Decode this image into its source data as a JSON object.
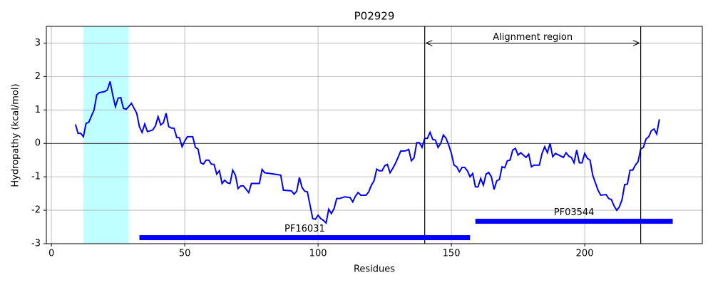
{
  "chart_data": {
    "type": "line",
    "title": "P02929",
    "xlabel": "Residues",
    "ylabel": "Hydropathy (kcal/mol)",
    "x": [
      9,
      10,
      11,
      12,
      13,
      14,
      16,
      17,
      18,
      20,
      21,
      22,
      23,
      24,
      25,
      26,
      27,
      28,
      29,
      30,
      31,
      32,
      33,
      34,
      35,
      36,
      38,
      39,
      40,
      41,
      42,
      43,
      44,
      45,
      46,
      47,
      48,
      49,
      50,
      51,
      53,
      54,
      55,
      56,
      57,
      58,
      59,
      60,
      61,
      62,
      63,
      64,
      65,
      66,
      67,
      68,
      69,
      70,
      71,
      72,
      74,
      75,
      78,
      79,
      80,
      82,
      86,
      87,
      90,
      91,
      92,
      93,
      94,
      95,
      96,
      97,
      98,
      99,
      100,
      101,
      102,
      103,
      104,
      105,
      106,
      107,
      108,
      110,
      112,
      113,
      114,
      115,
      116,
      118,
      119,
      120,
      121,
      122,
      123,
      124,
      125,
      126,
      127,
      128,
      129,
      130,
      131,
      132,
      133,
      134,
      135,
      136,
      137,
      138,
      139,
      140,
      141,
      142,
      143,
      144,
      145,
      146,
      147,
      148,
      149,
      150,
      151,
      152,
      153,
      154,
      155,
      156,
      157,
      158,
      159,
      160,
      161,
      162,
      163,
      164,
      165,
      166,
      167,
      168,
      169,
      170,
      171,
      172,
      173,
      174,
      175,
      176,
      177,
      178,
      179,
      180,
      181,
      183,
      184,
      185,
      186,
      187,
      188,
      189,
      191,
      192,
      193,
      194,
      195,
      196,
      197,
      198,
      199,
      200,
      201,
      202,
      203,
      204,
      205,
      206,
      208,
      209,
      210,
      211,
      212,
      213,
      214,
      215,
      216,
      217,
      218,
      219,
      220,
      221,
      222,
      223,
      224,
      225,
      226,
      227,
      228
    ],
    "values": [
      0.57,
      0.3,
      0.3,
      0.2,
      0.6,
      0.63,
      1.0,
      1.45,
      1.52,
      1.55,
      1.6,
      1.85,
      1.45,
      1.1,
      1.35,
      1.37,
      1.05,
      1.02,
      1.1,
      1.2,
      1.05,
      0.9,
      0.5,
      0.33,
      0.58,
      0.35,
      0.4,
      0.52,
      0.8,
      0.55,
      0.62,
      0.9,
      0.5,
      0.46,
      0.45,
      0.18,
      0.17,
      -0.1,
      0.07,
      0.2,
      0.2,
      -0.12,
      -0.17,
      -0.58,
      -0.62,
      -0.5,
      -0.5,
      -0.62,
      -0.63,
      -0.92,
      -0.82,
      -1.2,
      -1.1,
      -1.18,
      -1.2,
      -0.8,
      -0.95,
      -1.35,
      -1.27,
      -1.27,
      -1.47,
      -1.2,
      -1.2,
      -0.78,
      -0.88,
      -0.9,
      -0.95,
      -1.4,
      -1.42,
      -1.52,
      -1.43,
      -1.02,
      -1.32,
      -1.43,
      -1.45,
      -1.85,
      -2.25,
      -2.27,
      -2.15,
      -2.25,
      -2.3,
      -2.38,
      -1.97,
      -2.1,
      -1.95,
      -1.65,
      -1.65,
      -1.6,
      -1.62,
      -1.75,
      -1.58,
      -1.47,
      -1.55,
      -1.55,
      -1.45,
      -1.25,
      -1.12,
      -0.77,
      -0.82,
      -0.82,
      -0.67,
      -0.63,
      -0.88,
      -0.75,
      -0.6,
      -0.42,
      -0.23,
      -0.23,
      -0.22,
      -0.18,
      -0.52,
      -0.43,
      0.02,
      0.02,
      -0.12,
      0.15,
      0.15,
      0.33,
      0.12,
      0.1,
      -0.12,
      0.0,
      0.25,
      0.15,
      -0.05,
      -0.3,
      -0.65,
      -0.7,
      -0.85,
      -0.72,
      -0.72,
      -0.82,
      -1.0,
      -0.9,
      -1.3,
      -1.3,
      -1.05,
      -1.25,
      -0.92,
      -0.87,
      -1.0,
      -1.38,
      -1.12,
      -1.08,
      -0.7,
      -0.73,
      -0.52,
      -0.5,
      -0.2,
      -0.15,
      -0.35,
      -0.28,
      -0.35,
      -0.42,
      -0.32,
      -0.7,
      -0.65,
      -0.65,
      -0.3,
      -0.1,
      -0.28,
      0.0,
      -0.4,
      -0.3,
      -0.38,
      -0.42,
      -0.28,
      -0.38,
      -0.42,
      -0.58,
      -0.2,
      -0.58,
      -0.58,
      -0.3,
      -0.45,
      -0.5,
      -0.95,
      -1.18,
      -1.4,
      -1.55,
      -1.53,
      -1.65,
      -1.68,
      -1.87,
      -2.0,
      -1.9,
      -1.68,
      -1.23,
      -1.22,
      -0.8,
      -0.8,
      -0.65,
      -0.55,
      -0.17,
      -0.12,
      0.13,
      0.2,
      0.38,
      0.43,
      0.28,
      0.72
    ],
    "color": "#0000ff",
    "xlim": [
      -1.9,
      244.1
    ],
    "ylim": [
      -3,
      3.5
    ],
    "xticks": [
      0,
      50,
      100,
      150,
      200
    ],
    "yticks": [
      -3,
      -2,
      -1,
      0,
      1,
      2,
      3
    ],
    "grid": true,
    "hline": 0,
    "highlight_span": [
      12,
      29
    ],
    "highlight_color": "#c0ffff",
    "vlines": [
      140,
      221
    ],
    "arrow": {
      "label": "Alignment region",
      "y": 3,
      "start": 140,
      "end": 221
    },
    "domain_color": "#0000ff",
    "domains": [
      {
        "label": "PF16031",
        "start": 33,
        "end": 157,
        "y": -2.82
      },
      {
        "label": "PF03544",
        "start": 159,
        "end": 233,
        "y": -2.33
      }
    ]
  }
}
